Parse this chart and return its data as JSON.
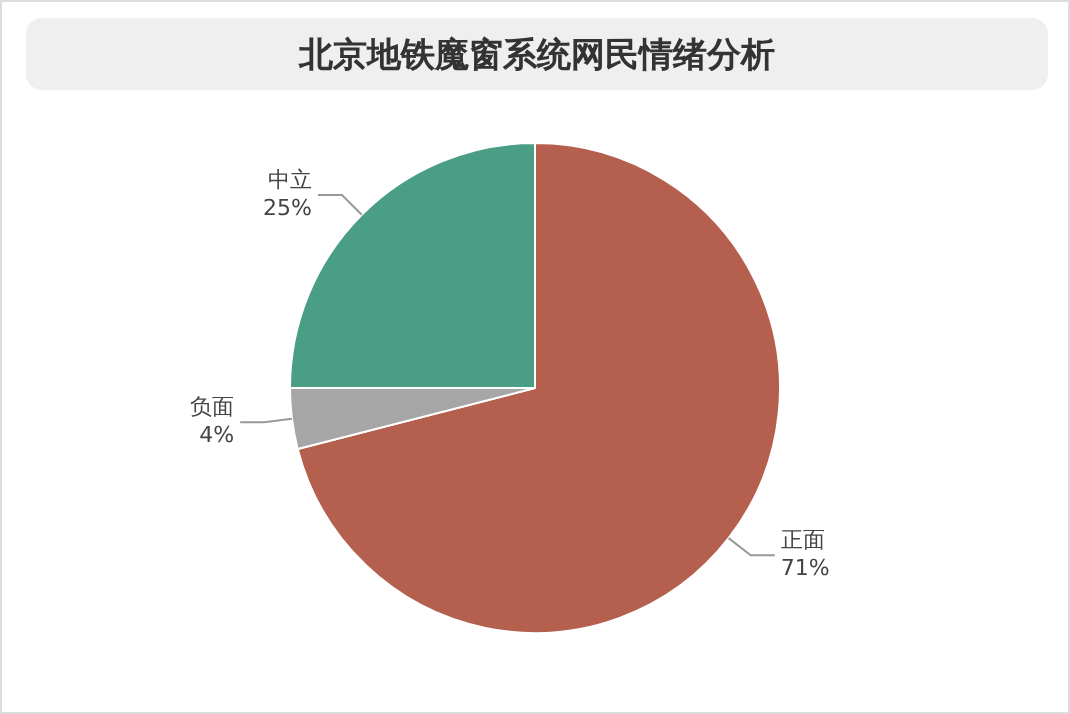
{
  "chart_data": {
    "type": "pie",
    "title": "北京地铁魔窗系统网民情绪分析",
    "categories": [
      "正面",
      "负面",
      "中立"
    ],
    "values": [
      71,
      4,
      25
    ],
    "colors": [
      "#b5604f",
      "#a6a6a6",
      "#4a9e85"
    ],
    "value_labels": [
      "71%",
      "4%",
      "25%"
    ],
    "legend": false
  }
}
